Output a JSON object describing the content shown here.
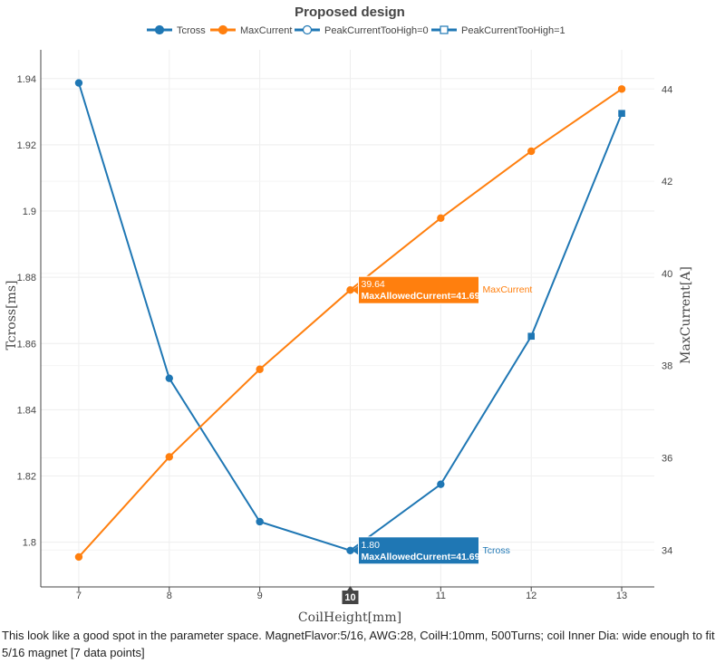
{
  "chart_data": {
    "type": "line",
    "title": "Proposed design",
    "xlabel": "CoilHeight[mm]",
    "ylabel": "Tcross[ms]",
    "y2label": "MaxCurrent[A]",
    "x": [
      7,
      8,
      9,
      10,
      11,
      12,
      13
    ],
    "xlim": [
      6.58,
      13.36
    ],
    "ylim": [
      1.7865,
      1.9487
    ],
    "y2lim": [
      33.2,
      44.85
    ],
    "x_ticks": [
      "7",
      "8",
      "9",
      "10",
      "11",
      "12",
      "13"
    ],
    "y_ticks": [
      "1.8",
      "1.82",
      "1.84",
      "1.86",
      "1.88",
      "1.9",
      "1.92",
      "1.94"
    ],
    "y2_ticks": [
      "34",
      "36",
      "38",
      "40",
      "42",
      "44"
    ],
    "grid": true,
    "legend_position": "top-center",
    "legend": [
      {
        "label": "Tcross",
        "color": "#1f77b4",
        "marker": "circle",
        "filled": true
      },
      {
        "label": "MaxCurrent",
        "color": "#ff7f0e",
        "marker": "circle",
        "filled": true
      },
      {
        "label": "PeakCurrentTooHigh=0",
        "color": "#1f77b4",
        "marker": "circle",
        "filled": false
      },
      {
        "label": "PeakCurrentTooHigh=1",
        "color": "#1f77b4",
        "marker": "square",
        "filled": false
      }
    ],
    "series": [
      {
        "name": "Tcross",
        "axis": "y",
        "color": "#1f77b4",
        "values": [
          1.9387,
          1.8495,
          1.8062,
          1.7975,
          1.8175,
          1.8622,
          1.9295
        ],
        "markers": [
          "circle",
          "circle",
          "circle",
          "circle",
          "circle",
          "square",
          "square"
        ]
      },
      {
        "name": "MaxCurrent",
        "axis": "y2",
        "color": "#ff7f0e",
        "values": [
          33.85,
          36.02,
          37.92,
          39.64,
          41.2,
          42.65,
          44.0
        ],
        "markers": [
          "circle",
          "circle",
          "circle",
          "circle",
          "circle",
          "circle",
          "circle"
        ]
      }
    ],
    "hover": {
      "x_label": "10",
      "tooltips": [
        {
          "series": "MaxCurrent",
          "value": "39.64",
          "extra": "MaxAllowedCurrent=41.69",
          "color": "#ff7f0e",
          "x": 10,
          "axis": "y2",
          "y": 39.64
        },
        {
          "series": "Tcross",
          "value": "1.80",
          "extra": "MaxAllowedCurrent=41.69",
          "color": "#1f77b4",
          "x": 10,
          "axis": "y",
          "y": 1.7975
        }
      ]
    }
  },
  "caption": "This look like a good spot in the parameter space. MagnetFlavor:5/16, AWG:28, CoilH:10mm, 500Turns; coil Inner Dia: wide enough to fit 5/16 magnet [7 data points]"
}
